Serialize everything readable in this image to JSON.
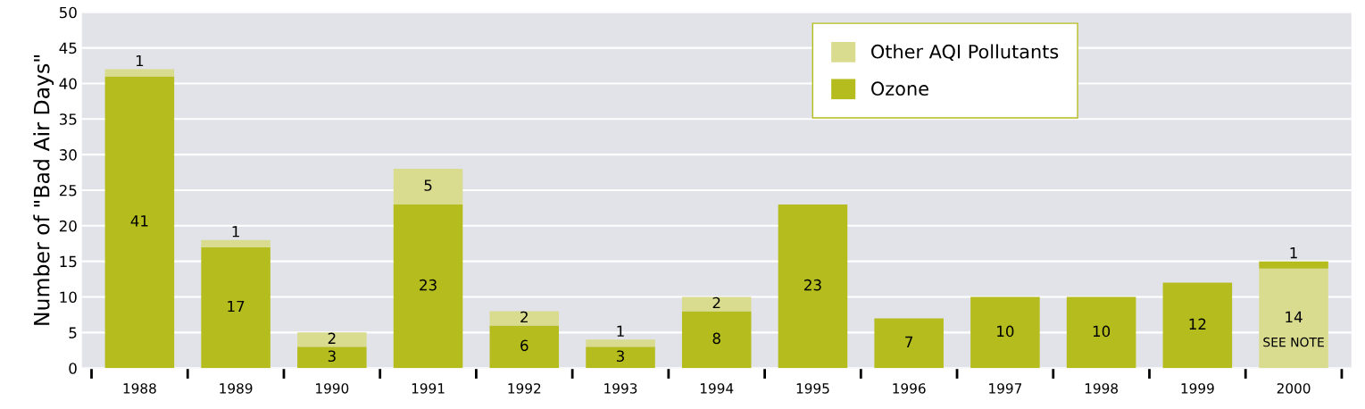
{
  "chart_data": {
    "type": "bar",
    "stacked": true,
    "ylabel": "Number of \"Bad Air Days\"",
    "categories": [
      "1988",
      "1989",
      "1990",
      "1991",
      "1992",
      "1993",
      "1994",
      "1995",
      "1996",
      "1997",
      "1998",
      "1999",
      "2000"
    ],
    "series": [
      {
        "name": "Ozone",
        "color": "#b5bd1e",
        "values": [
          41,
          17,
          3,
          23,
          6,
          3,
          8,
          23,
          7,
          10,
          10,
          12,
          null
        ]
      },
      {
        "name": "Other AQI Pollutants",
        "color": "#d9dc8e",
        "values": [
          1,
          1,
          2,
          5,
          2,
          1,
          2,
          null,
          null,
          null,
          null,
          null,
          14
        ]
      },
      {
        "color": "#b5bd1e",
        "values": [
          null,
          null,
          null,
          null,
          null,
          null,
          null,
          null,
          null,
          null,
          null,
          null,
          1
        ]
      }
    ],
    "ylim": [
      0,
      50
    ],
    "yticks": [
      0,
      5,
      10,
      15,
      20,
      25,
      30,
      35,
      40,
      45,
      50
    ],
    "grid": "y",
    "legend": "top",
    "data_labels": true,
    "annotations": [
      "SEE NOTE"
    ]
  }
}
